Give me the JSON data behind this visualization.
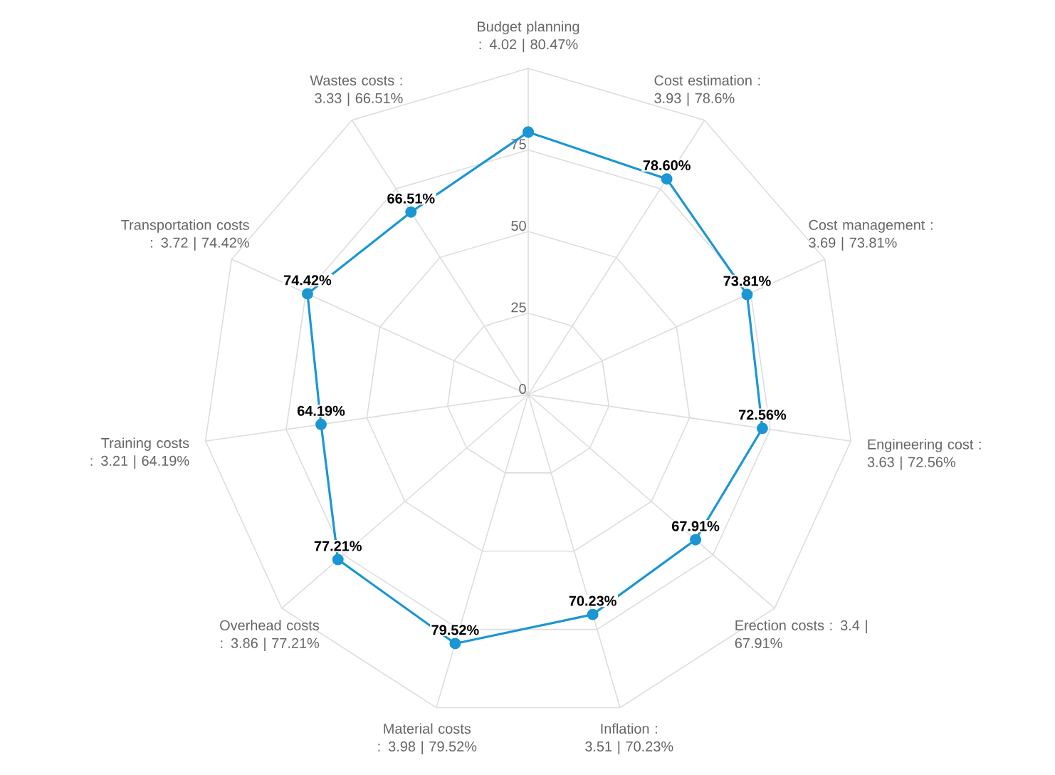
{
  "chart_data": {
    "type": "radar",
    "categories": [
      "Budget planning : 4.02 | 80.47%",
      "Cost estimation : 3.93 | 78.6%",
      "Cost management : 3.69 | 73.81%",
      "Engineering cost : 3.63 | 72.56%",
      "Erection costs : 3.4 | 67.91%",
      "Inflation : 3.51 | 70.23%",
      "Material costs : 3.98 | 79.52%",
      "Overhead costs : 3.86 | 77.21%",
      "Training costs : 3.21 | 64.19%",
      "Transportation costs : 3.72 | 74.42%",
      "Wastes costs : 3.33 | 66.51%"
    ],
    "values": [
      80.47,
      78.6,
      73.81,
      72.56,
      67.91,
      70.23,
      79.52,
      77.21,
      64.19,
      74.42,
      66.51
    ],
    "value_labels": [
      null,
      "78.60%",
      "73.81%",
      "72.56%",
      "67.91%",
      "70.23%",
      "79.52%",
      "77.21%",
      "64.19%",
      "74.42%",
      "66.51%"
    ],
    "color": "#1a96d4",
    "ylim": [
      0,
      100
    ],
    "yticks": [
      0,
      25,
      50,
      75
    ],
    "grid": true,
    "marker": "circle",
    "line_style": "solid"
  }
}
